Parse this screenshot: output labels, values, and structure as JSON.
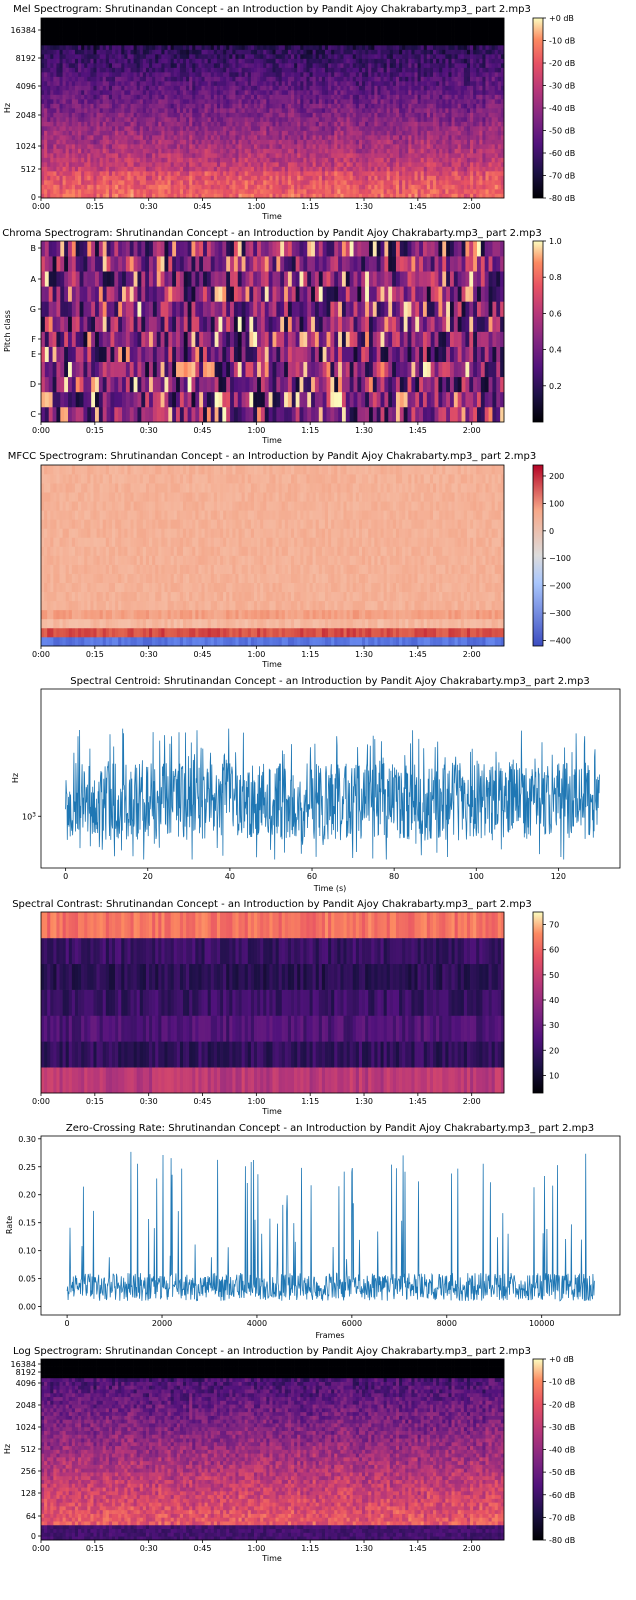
{
  "chart_data": [
    {
      "type": "heatmap",
      "title": "Mel Spectrogram: Shrutinandan Concept - an Introduction by Pandit Ajoy Chakrabarty.mp3_ part 2.mp3",
      "xlabel": "Time",
      "ylabel": "Hz",
      "x_ticks": [
        "0:00",
        "0:15",
        "0:30",
        "0:45",
        "1:00",
        "1:15",
        "1:30",
        "1:45",
        "2:00"
      ],
      "y_ticks": [
        "0",
        "512",
        "1024",
        "2048",
        "4096",
        "8192",
        "16384"
      ],
      "colorbar_ticks": [
        "+0 dB",
        "-10 dB",
        "-20 dB",
        "-30 dB",
        "-40 dB",
        "-50 dB",
        "-60 dB",
        "-70 dB",
        "-80 dB"
      ],
      "colorbar_range": [
        -80,
        0
      ],
      "colormap": "magma",
      "duration_s": 129
    },
    {
      "type": "heatmap",
      "title": "Chroma Spectrogram: Shrutinandan Concept - an Introduction by Pandit Ajoy Chakrabarty.mp3_ part 2.mp3",
      "xlabel": "Time",
      "ylabel": "Pitch class",
      "x_ticks": [
        "0:00",
        "0:15",
        "0:30",
        "0:45",
        "1:00",
        "1:15",
        "1:30",
        "1:45",
        "2:00"
      ],
      "y_ticks": [
        "C",
        "D",
        "E",
        "F",
        "G",
        "A",
        "B"
      ],
      "colorbar_ticks": [
        "0.2",
        "0.4",
        "0.6",
        "0.8",
        "1.0"
      ],
      "colorbar_range": [
        0,
        1
      ],
      "colormap": "magma"
    },
    {
      "type": "heatmap",
      "title": "MFCC Spectrogram: Shrutinandan Concept - an Introduction by Pandit Ajoy Chakrabarty.mp3_ part 2.mp3",
      "xlabel": "Time",
      "ylabel": "",
      "x_ticks": [
        "0:00",
        "0:15",
        "0:30",
        "0:45",
        "1:00",
        "1:15",
        "1:30",
        "1:45",
        "2:00"
      ],
      "colorbar_ticks": [
        "200",
        "100",
        "0",
        "−100",
        "−200",
        "−300",
        "−400"
      ],
      "colorbar_range": [
        -420,
        240
      ],
      "colormap": "coolwarm"
    },
    {
      "type": "line",
      "title": "Spectral Centroid: Shrutinandan Concept - an Introduction by Pandit Ajoy Chakrabarty.mp3_ part 2.mp3",
      "xlabel": "Time (s)",
      "ylabel": "Hz",
      "x_ticks": [
        "0",
        "20",
        "40",
        "60",
        "80",
        "100",
        "120"
      ],
      "xlim": [
        -6,
        135
      ],
      "y_scale": "log",
      "ylim": [
        500,
        5500
      ],
      "y_tick_label": "10",
      "y_tick_exp": "3",
      "y_tick_value": 1000,
      "color": "#1f77b4"
    },
    {
      "type": "heatmap",
      "title": "Spectral Contrast: Shrutinandan Concept - an Introduction by Pandit Ajoy Chakrabarty.mp3_ part 2.mp3",
      "xlabel": "Time",
      "ylabel": "",
      "x_ticks": [
        "0:00",
        "0:15",
        "0:30",
        "0:45",
        "1:00",
        "1:15",
        "1:30",
        "1:45",
        "2:00"
      ],
      "colorbar_ticks": [
        "70",
        "60",
        "50",
        "40",
        "30",
        "20",
        "10"
      ],
      "colorbar_range": [
        3,
        75
      ],
      "colormap": "magma",
      "bands": 7
    },
    {
      "type": "line",
      "title": "Zero-Crossing Rate: Shrutinandan Concept - an Introduction by Pandit Ajoy Chakrabarty.mp3_ part 2.mp3",
      "xlabel": "Frames",
      "ylabel": "Rate",
      "x_ticks": [
        "0",
        "2000",
        "4000",
        "6000",
        "8000",
        "10000"
      ],
      "xlim": [
        -550,
        11650
      ],
      "y_ticks": [
        "0.00",
        "0.05",
        "0.10",
        "0.15",
        "0.20",
        "0.25",
        "0.30"
      ],
      "ylim": [
        -0.015,
        0.305
      ],
      "color": "#1f77b4"
    },
    {
      "type": "heatmap",
      "title": "Log Spectrogram: Shrutinandan Concept - an Introduction by Pandit Ajoy Chakrabarty.mp3_ part 2.mp3",
      "xlabel": "Time",
      "ylabel": "Hz",
      "x_ticks": [
        "0:00",
        "0:15",
        "0:30",
        "0:45",
        "1:00",
        "1:15",
        "1:30",
        "1:45",
        "2:00"
      ],
      "y_ticks": [
        "0",
        "64",
        "128",
        "256",
        "512",
        "1024",
        "2048",
        "4096",
        "8192",
        "16384"
      ],
      "colorbar_ticks": [
        "+0 dB",
        "-10 dB",
        "-20 dB",
        "-30 dB",
        "-40 dB",
        "-50 dB",
        "-60 dB",
        "-70 dB",
        "-80 dB"
      ],
      "colorbar_range": [
        -80,
        0
      ],
      "colormap": "magma"
    }
  ]
}
